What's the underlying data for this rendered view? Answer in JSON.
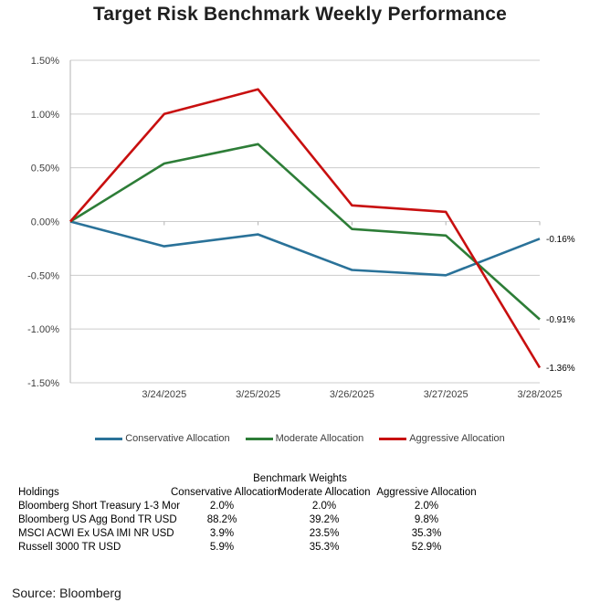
{
  "title": "Target Risk Benchmark Weekly Performance",
  "chart_data": {
    "type": "line",
    "x": [
      "",
      "3/24/2025",
      "3/25/2025",
      "3/26/2025",
      "3/27/2025",
      "3/28/2025"
    ],
    "series": [
      {
        "name": "Conservative Allocation",
        "color": "#2a7299",
        "values": [
          0.0,
          -0.23,
          -0.12,
          -0.45,
          -0.5,
          -0.16
        ],
        "end_label": "-0.16%"
      },
      {
        "name": "Moderate Allocation",
        "color": "#2d7d37",
        "values": [
          0.0,
          0.54,
          0.72,
          -0.07,
          -0.13,
          -0.91
        ],
        "end_label": "-0.91%"
      },
      {
        "name": "Aggressive Allocation",
        "color": "#c80f0f",
        "values": [
          0.0,
          1.0,
          1.23,
          0.15,
          0.09,
          -1.36
        ],
        "end_label": "-1.36%"
      }
    ],
    "title": "Target Risk Benchmark Weekly Performance",
    "xlabel": "",
    "ylabel": "",
    "ylim": [
      -1.5,
      1.5
    ],
    "ytick_step": 0.5,
    "ytick_labels": [
      "1.50%",
      "1.00%",
      "0.50%",
      "0.00%",
      "-0.50%",
      "-1.00%",
      "-1.50%"
    ],
    "grid": true,
    "legend_position": "bottom"
  },
  "table": {
    "title": "Benchmark Weights",
    "columns": [
      "Holdings",
      "Conservative Allocation",
      "Moderate Allocation",
      "Aggressive Allocation"
    ],
    "rows": [
      [
        "Bloomberg Short Treasury 1-3 Mor",
        "2.0%",
        "2.0%",
        "2.0%"
      ],
      [
        "Bloomberg US Agg Bond TR USD",
        "88.2%",
        "39.2%",
        "9.8%"
      ],
      [
        "MSCI ACWI Ex USA IMI NR USD",
        "3.9%",
        "23.5%",
        "35.3%"
      ],
      [
        "Russell 3000 TR USD",
        "5.9%",
        "35.3%",
        "52.9%"
      ]
    ]
  },
  "source": "Source: Bloomberg",
  "colors": {
    "gridline": "#cccccc",
    "axis": "#b3b3b3",
    "tick_label": "#404040",
    "end_label": "#000000"
  }
}
